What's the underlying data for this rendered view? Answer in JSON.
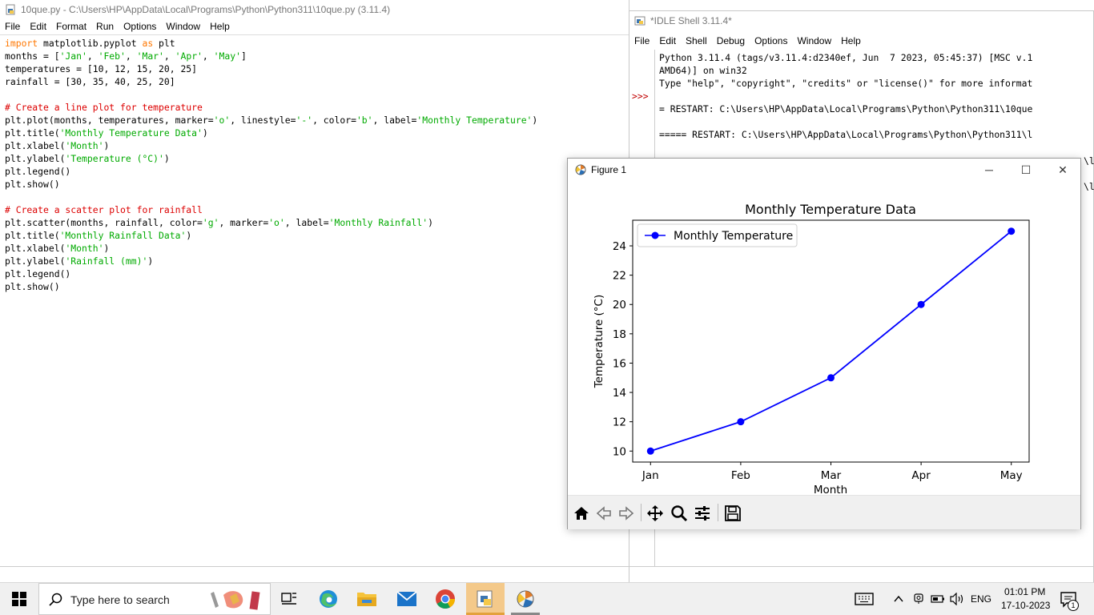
{
  "editor": {
    "title": "10que.py - C:\\Users\\HP\\AppData\\Local\\Programs\\Python\\Python311\\10que.py (3.11.4)",
    "menu": [
      "File",
      "Edit",
      "Format",
      "Run",
      "Options",
      "Window",
      "Help"
    ]
  },
  "shell": {
    "title": "*IDLE Shell 3.11.4*",
    "menu": [
      "File",
      "Edit",
      "Shell",
      "Debug",
      "Options",
      "Window",
      "Help"
    ],
    "prompt": ">>>",
    "lines": [
      "Python 3.11.4 (tags/v3.11.4:d2340ef, Jun  7 2023, 05:45:37) [MSC v.1",
      "AMD64)] on win32",
      "Type \"help\", \"copyright\", \"credits\" or \"license()\" for more informat",
      "",
      "= RESTART: C:\\Users\\HP\\AppData\\Local\\Programs\\Python\\Python311\\10que",
      "",
      "===== RESTART: C:\\Users\\HP\\AppData\\Local\\Programs\\Python\\Python311\\l"
    ],
    "partial_right_1": "\\l",
    "partial_right_2": "\\l"
  },
  "figure": {
    "title": "Figure 1",
    "minimize": "─",
    "maximize": "☐",
    "close": "✕",
    "toolbar": [
      "home-icon",
      "back-icon",
      "forward-icon",
      "pan-icon",
      "zoom-icon",
      "configure-icon",
      "save-icon"
    ]
  },
  "chart_data": {
    "type": "line",
    "title": "Monthly Temperature Data",
    "xlabel": "Month",
    "ylabel": "Temperature (°C)",
    "categories": [
      "Jan",
      "Feb",
      "Mar",
      "Apr",
      "May"
    ],
    "series": [
      {
        "name": "Monthly Temperature",
        "values": [
          10,
          12,
          15,
          20,
          25
        ],
        "color": "#0000ff"
      }
    ],
    "yticks": [
      10,
      12,
      14,
      16,
      18,
      20,
      22,
      24
    ],
    "ylim": [
      9.25,
      25.75
    ],
    "legend": "upper-left",
    "grid": false
  },
  "taskbar": {
    "search_placeholder": "Type here to search",
    "language": "ENG",
    "time": "01:01 PM",
    "date": "17-10-2023",
    "notifications": "1"
  }
}
